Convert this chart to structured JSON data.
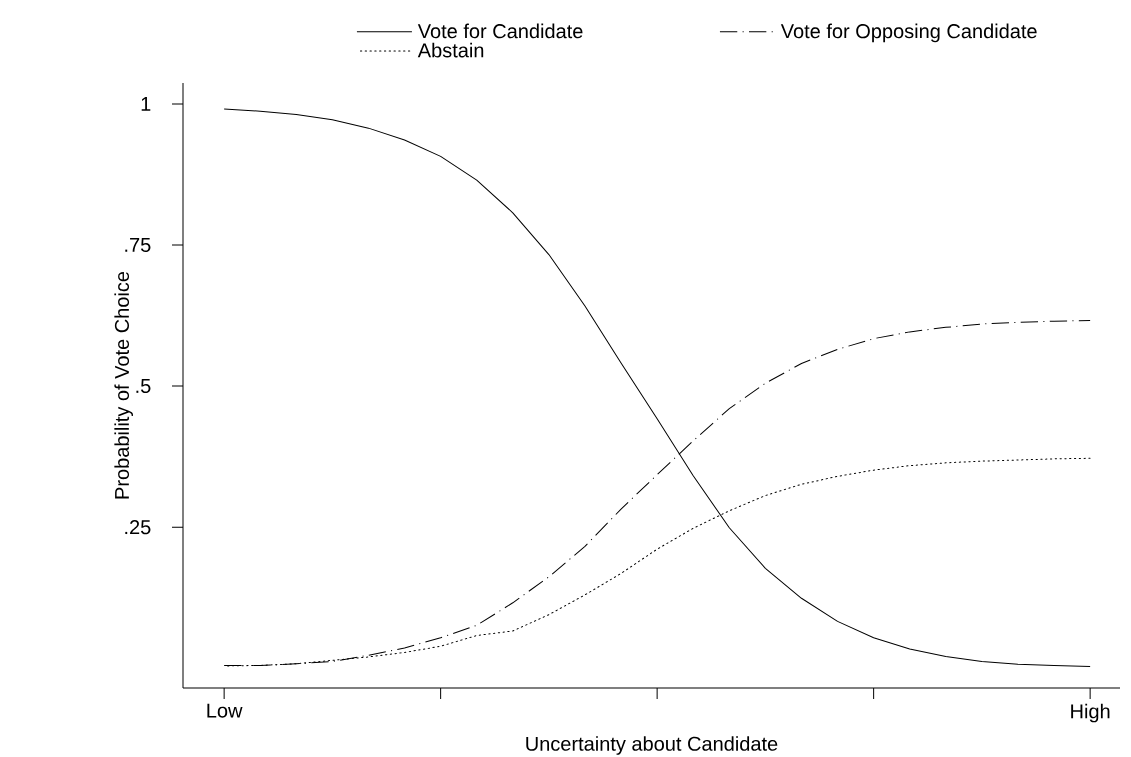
{
  "chart_data": {
    "type": "line",
    "xlabel": "Uncertainty about Candidate",
    "ylabel": "Probability of Vote Choice",
    "categories": [
      "Low",
      null,
      null,
      null,
      null,
      null,
      null,
      null,
      null,
      null,
      null,
      null,
      null,
      null,
      null,
      null,
      null,
      null,
      null,
      null,
      null,
      null,
      null,
      null,
      "High"
    ],
    "ylim": [
      -0.035,
      1.037
    ],
    "yticks": [
      {
        "value": 0.25,
        "label": ".25"
      },
      {
        "value": 0.5,
        "label": ".5"
      },
      {
        "value": 0.75,
        "label": ".75"
      },
      1
    ],
    "grid": false,
    "legend": "top",
    "series": [
      {
        "name": "Vote for Candidate",
        "color": "#000000",
        "line_style": "solid",
        "values": [
          0.991,
          0.987,
          0.981,
          0.972,
          0.957,
          0.936,
          0.907,
          0.865,
          0.807,
          0.733,
          0.642,
          0.541,
          0.442,
          0.341,
          0.249,
          0.177,
          0.124,
          0.083,
          0.054,
          0.034,
          0.021,
          0.012,
          0.007,
          0.005,
          0.003
        ]
      },
      {
        "name": "Vote for Opposing Candidate",
        "color": "#000000",
        "line_style": "dashed",
        "values": [
          0.005,
          0.005,
          0.008,
          0.012,
          0.023,
          0.036,
          0.054,
          0.076,
          0.116,
          0.162,
          0.216,
          0.282,
          0.343,
          0.403,
          0.46,
          0.505,
          0.54,
          0.565,
          0.584,
          0.596,
          0.604,
          0.61,
          0.613,
          0.615,
          0.616
        ]
      },
      {
        "name": "Abstain",
        "color": "#000000",
        "line_style": "dotted",
        "values": [
          0.004,
          0.005,
          0.008,
          0.014,
          0.02,
          0.028,
          0.039,
          0.058,
          0.066,
          0.095,
          0.13,
          0.168,
          0.211,
          0.248,
          0.279,
          0.306,
          0.326,
          0.34,
          0.351,
          0.359,
          0.364,
          0.367,
          0.369,
          0.371,
          0.372
        ]
      }
    ]
  }
}
